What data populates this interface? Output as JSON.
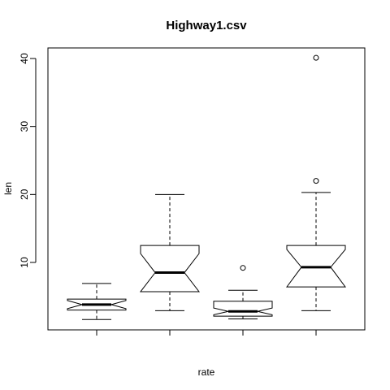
{
  "chart_data": {
    "type": "boxplot",
    "title": "Highway1.csv",
    "xlabel": "rate",
    "ylabel": "len",
    "ylim": [
      0,
      42
    ],
    "yticks": [
      10,
      20,
      30,
      40
    ],
    "notched": true,
    "boxes": [
      {
        "whisker_low": 1.6,
        "q1": 3.0,
        "median": 3.8,
        "q3": 4.6,
        "whisker_high": 6.9,
        "notch_low": 3.2,
        "notch_high": 4.4,
        "outliers": []
      },
      {
        "whisker_low": 2.9,
        "q1": 5.7,
        "median": 8.5,
        "q3": 12.5,
        "whisker_high": 20.0,
        "notch_low": 5.7,
        "notch_high": 11.3,
        "outliers": []
      },
      {
        "whisker_low": 1.7,
        "q1": 2.1,
        "median": 2.8,
        "q3": 4.3,
        "whisker_high": 5.9,
        "notch_low": 2.3,
        "notch_high": 3.3,
        "outliers": [
          9.2
        ]
      },
      {
        "whisker_low": 2.9,
        "q1": 6.4,
        "median": 9.3,
        "q3": 12.5,
        "whisker_high": 20.3,
        "notch_low": 6.4,
        "notch_high": 11.9,
        "outliers": [
          22.0,
          40.1
        ]
      }
    ]
  }
}
